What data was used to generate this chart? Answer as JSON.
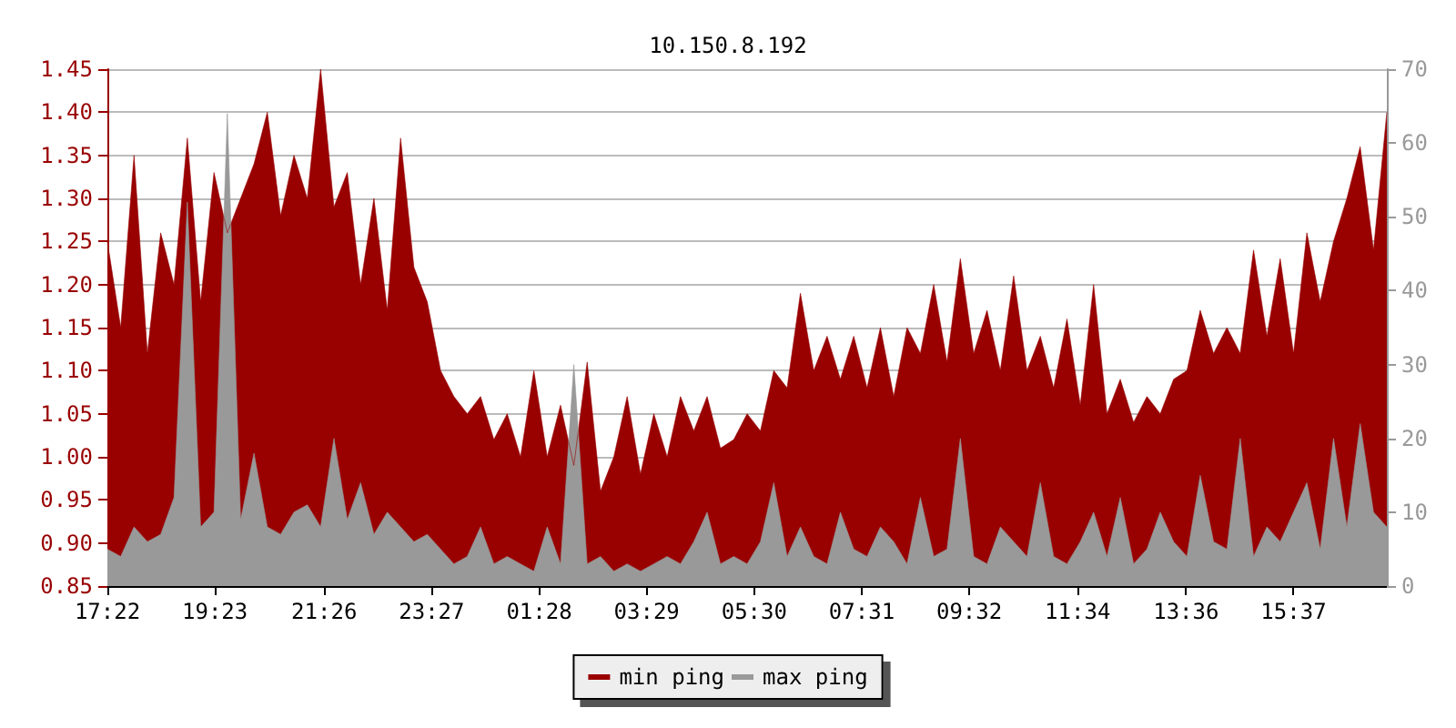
{
  "chart_data": {
    "type": "area",
    "title": "10.150.8.192",
    "x": [
      "--01-01T17:22",
      "--01-01T17:37",
      "--01-01T17:52",
      "--01-01T18:07",
      "--01-01T18:22",
      "--01-01T18:37",
      "--01-01T18:52",
      "--01-01T19:07",
      "--01-01T19:22",
      "--01-01T19:37",
      "--01-01T19:52",
      "--01-01T20:07",
      "--01-01T20:22",
      "--01-01T20:37",
      "--01-01T20:52",
      "--01-01T21:07",
      "--01-01T21:22",
      "--01-01T21:37",
      "--01-01T21:52",
      "--01-01T22:07",
      "--01-01T22:22",
      "--01-01T22:37",
      "--01-01T22:52",
      "--01-01T23:07",
      "--01-01T23:22",
      "--01-01T23:37",
      "--01-01T23:52",
      "--01-02T00:07",
      "--01-02T00:22",
      "--01-02T00:37",
      "--01-02T00:52",
      "--01-02T01:07",
      "--01-02T01:22",
      "--01-02T01:37",
      "--01-02T01:52",
      "--01-02T02:07",
      "--01-02T02:22",
      "--01-02T02:37",
      "--01-02T02:52",
      "--01-02T03:07",
      "--01-02T03:22",
      "--01-02T03:37",
      "--01-02T03:52",
      "--01-02T04:07",
      "--01-02T04:22",
      "--01-02T04:37",
      "--01-02T04:52",
      "--01-02T05:07",
      "--01-02T05:22",
      "--01-02T05:37",
      "--01-02T05:52",
      "--01-02T06:07",
      "--01-02T06:22",
      "--01-02T06:37",
      "--01-02T06:52",
      "--01-02T07:07",
      "--01-02T07:22",
      "--01-02T07:37",
      "--01-02T07:52",
      "--01-02T08:07",
      "--01-02T08:22",
      "--01-02T08:37",
      "--01-02T08:52",
      "--01-02T09:07",
      "--01-02T09:22",
      "--01-02T09:37",
      "--01-02T09:52",
      "--01-02T10:07",
      "--01-02T10:22",
      "--01-02T10:37",
      "--01-02T10:52",
      "--01-02T11:07",
      "--01-02T11:22",
      "--01-02T11:37",
      "--01-02T11:52",
      "--01-02T12:07",
      "--01-02T12:22",
      "--01-02T12:37",
      "--01-02T12:52",
      "--01-02T13:07",
      "--01-02T13:22",
      "--01-02T13:37",
      "--01-02T13:52",
      "--01-02T14:07",
      "--01-02T14:22",
      "--01-02T14:37",
      "--01-02T14:52",
      "--01-02T15:07",
      "--01-02T15:22",
      "--01-02T15:37",
      "--01-02T15:52",
      "--01-02T16:07",
      "--01-02T16:22",
      "--01-02T16:37",
      "--01-02T16:52",
      "--01-02T17:07",
      "--01-02T17:22"
    ],
    "series": [
      {
        "name": "min ping",
        "color": "#990000",
        "values": [
          1.25,
          1.15,
          1.35,
          1.12,
          1.26,
          1.2,
          1.37,
          1.18,
          1.33,
          1.26,
          1.3,
          1.34,
          1.4,
          1.28,
          1.35,
          1.3,
          1.45,
          1.29,
          1.33,
          1.2,
          1.3,
          1.17,
          1.37,
          1.22,
          1.18,
          1.1,
          1.07,
          1.05,
          1.07,
          1.02,
          1.05,
          1.0,
          1.1,
          1.0,
          1.06,
          0.99,
          1.11,
          0.96,
          1.0,
          1.07,
          0.98,
          1.05,
          1.0,
          1.07,
          1.03,
          1.07,
          1.01,
          1.02,
          1.05,
          1.03,
          1.1,
          1.08,
          1.19,
          1.1,
          1.14,
          1.09,
          1.14,
          1.08,
          1.15,
          1.07,
          1.15,
          1.12,
          1.2,
          1.11,
          1.23,
          1.12,
          1.17,
          1.1,
          1.21,
          1.1,
          1.14,
          1.08,
          1.16,
          1.06,
          1.2,
          1.05,
          1.09,
          1.04,
          1.07,
          1.05,
          1.09,
          1.1,
          1.17,
          1.12,
          1.15,
          1.12,
          1.24,
          1.14,
          1.23,
          1.12,
          1.26,
          1.18,
          1.25,
          1.3,
          1.36,
          1.24,
          1.4
        ]
      },
      {
        "name": "max ping",
        "color": "#999999",
        "axis": "y2",
        "values": [
          5,
          4,
          8,
          6,
          7,
          12,
          52,
          8,
          10,
          64,
          9,
          18,
          8,
          7,
          10,
          11,
          8,
          20,
          9,
          14,
          7,
          10,
          8,
          6,
          7,
          5,
          3,
          4,
          8,
          3,
          4,
          3,
          2,
          8,
          3,
          30,
          3,
          4,
          2,
          3,
          2,
          3,
          4,
          3,
          6,
          10,
          3,
          4,
          3,
          6,
          14,
          4,
          8,
          4,
          3,
          10,
          5,
          4,
          8,
          6,
          3,
          12,
          4,
          5,
          20,
          4,
          3,
          8,
          6,
          4,
          14,
          4,
          3,
          6,
          10,
          4,
          12,
          3,
          5,
          10,
          6,
          4,
          15,
          6,
          5,
          20,
          4,
          8,
          6,
          10,
          14,
          5,
          20,
          8,
          22,
          10,
          8
        ]
      }
    ],
    "xlim": [
      "--01-01T17:22",
      "--01-02T17:22"
    ],
    "xticks": [
      {
        "value": "--01-01T17:22",
        "label": "17:22"
      },
      {
        "value": "--01-01T19:23",
        "label": "19:23"
      },
      {
        "value": "--01-01T21:26",
        "label": "21:26"
      },
      {
        "value": "--01-01T23:27",
        "label": "23:27"
      },
      {
        "value": "--01-02T01:28",
        "label": "01:28"
      },
      {
        "value": "--01-02T03:29",
        "label": "03:29"
      },
      {
        "value": "--01-02T05:30",
        "label": "05:30"
      },
      {
        "value": "--01-02T07:31",
        "label": "07:31"
      },
      {
        "value": "--01-02T09:32",
        "label": "09:32"
      },
      {
        "value": "--01-02T11:34",
        "label": "11:34"
      },
      {
        "value": "--01-02T13:36",
        "label": "13:36"
      },
      {
        "value": "--01-02T15:37",
        "label": "15:37"
      }
    ],
    "ylim": [
      0.85,
      1.45
    ],
    "yticks": [
      0.85,
      {
        "value": 0.9,
        "label": "0.90"
      },
      0.95,
      {
        "value": 1.0,
        "label": "1.00"
      },
      1.05,
      {
        "value": 1.1,
        "label": "1.10"
      },
      1.15,
      {
        "value": 1.2,
        "label": "1.20"
      },
      1.25,
      {
        "value": 1.3,
        "label": "1.30"
      },
      1.35,
      {
        "value": 1.4,
        "label": "1.40"
      },
      1.45
    ],
    "y2lim": [
      0,
      70
    ],
    "y2ticks": [
      0,
      10,
      20,
      30,
      40,
      50,
      60,
      70
    ],
    "grid": "y",
    "legend": "bottom",
    "marker": "none",
    "line_style": "solid"
  }
}
